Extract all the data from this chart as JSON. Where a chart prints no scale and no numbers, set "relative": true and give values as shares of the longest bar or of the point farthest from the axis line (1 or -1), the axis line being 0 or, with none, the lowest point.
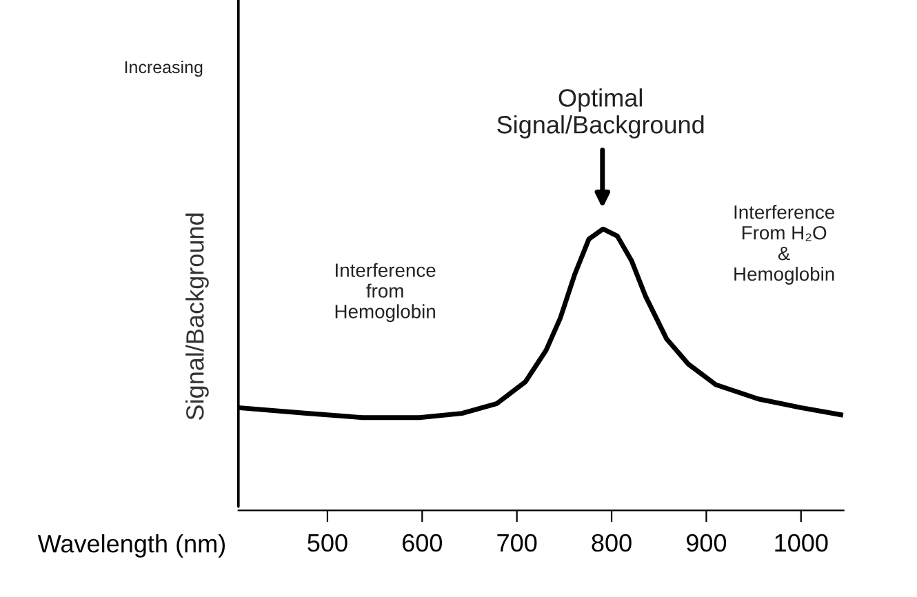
{
  "chart_data": {
    "type": "line",
    "relative": true,
    "xlabel": "Wavelength (nm)",
    "ylabel": "Signal/Background",
    "x": [
      406,
      478,
      537,
      597,
      642,
      679,
      709,
      731,
      746,
      761,
      776,
      791,
      806,
      821,
      836,
      858,
      881,
      910,
      955,
      1000,
      1042
    ],
    "series": [
      {
        "color": "#000000",
        "values": [
          0.365,
          0.345,
          0.33,
          0.33,
          0.345,
          0.38,
          0.457,
          0.57,
          0.685,
          0.838,
          0.964,
          1.0,
          0.975,
          0.888,
          0.76,
          0.61,
          0.52,
          0.447,
          0.396,
          0.365,
          0.34
        ]
      }
    ],
    "xlim": [
      406,
      1045
    ],
    "xticks": [
      500,
      600,
      700,
      800,
      900,
      1000
    ],
    "annotations": [
      "Increasing",
      "Optimal\nSignal/Background",
      "Interference\nfrom\nHemoglobin",
      "Interference\nFrom H₂O\n&\nHemoglobin"
    ],
    "grid": false,
    "legend": false,
    "marker": "none",
    "line_style": "solid"
  }
}
